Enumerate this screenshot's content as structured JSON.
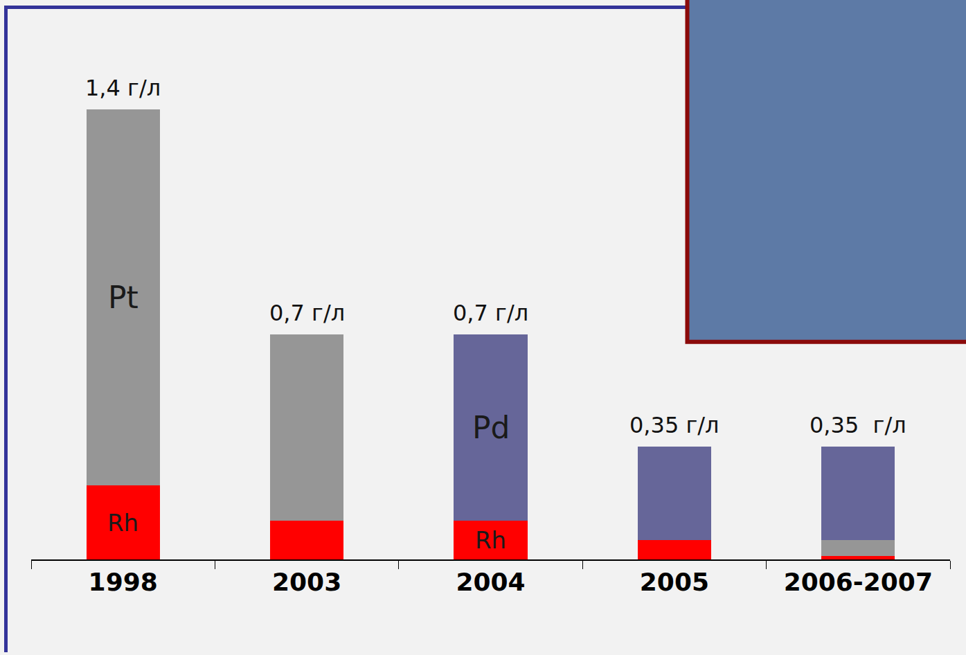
{
  "chart_data": {
    "type": "bar",
    "stacked": true,
    "grid": false,
    "tick_labels": "x",
    "categories": [
      "1998",
      "2003",
      "2004",
      "2005",
      "2006-2007"
    ],
    "series": [
      {
        "name": "Rh",
        "color": "#ff0000",
        "values": [
          0.23,
          0.12,
          0.12,
          0.06,
          0.01
        ]
      },
      {
        "name": "Pt",
        "color": "#969696",
        "values": [
          1.17,
          0.58,
          null,
          null,
          0.05
        ]
      },
      {
        "name": "Pd",
        "color": "#666699",
        "values": [
          null,
          null,
          0.58,
          0.29,
          0.29
        ]
      }
    ],
    "totals": [
      1.4,
      0.7,
      0.7,
      0.35,
      0.35
    ],
    "total_labels": [
      "1,4 г/л",
      "0,7 г/л",
      "0,7 г/л",
      "0,35 г/л",
      "0,35  г/л"
    ],
    "annotations": [
      {
        "text": "Pt",
        "category": "1998",
        "series": "Pt"
      },
      {
        "text": "Rh",
        "category": "1998",
        "series": "Rh"
      },
      {
        "text": "Pd",
        "category": "2004",
        "series": "Pd"
      },
      {
        "text": "Rh",
        "category": "2004",
        "series": "Rh"
      }
    ]
  }
}
